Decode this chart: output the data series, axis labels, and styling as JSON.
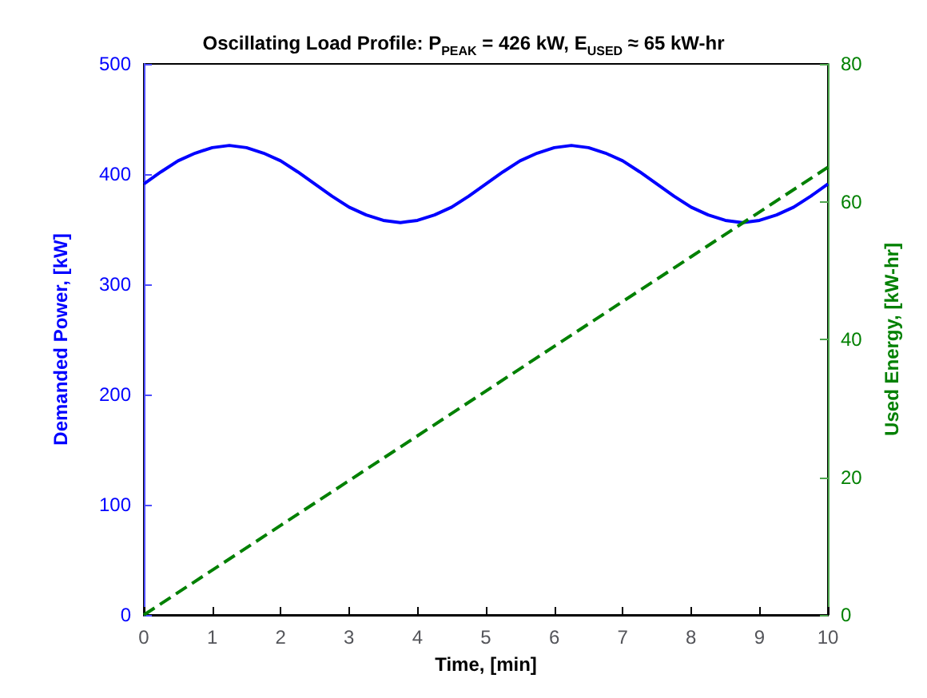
{
  "chart_data": {
    "type": "line",
    "title": "Oscillating Load Profile: P$_{PEAK}$ = 426 kW, E$_{USED}$ ≈ 65 kW-hr",
    "xlabel": "Time, [min]",
    "ylabel": "Demanded Power, [kW]",
    "y2label": "Used Energy, [kW-hr]",
    "xlim": [
      0,
      10
    ],
    "xticks": [
      0,
      1,
      2,
      3,
      4,
      5,
      6,
      7,
      8,
      9,
      10
    ],
    "ylim": [
      0,
      500
    ],
    "yticks": [
      0,
      100,
      200,
      300,
      400,
      500
    ],
    "y2lim": [
      0,
      80
    ],
    "y2ticks": [
      0,
      20,
      40,
      60,
      80
    ],
    "grid": false,
    "series": [
      {
        "color": "#0000ff",
        "line_style": "solid",
        "x": [
          0,
          0.25,
          0.5,
          0.75,
          1,
          1.25,
          1.5,
          1.75,
          2,
          2.25,
          2.5,
          2.75,
          3,
          3.25,
          3.5,
          3.75,
          4,
          4.25,
          4.5,
          4.75,
          5,
          5.25,
          5.5,
          5.75,
          6,
          6.25,
          6.5,
          6.75,
          7,
          7.25,
          7.5,
          7.75,
          8,
          8.25,
          8.5,
          8.75,
          9,
          9.25,
          9.5,
          9.75,
          10
        ],
        "values": [
          391,
          402,
          412,
          419,
          424,
          426,
          424,
          419,
          412,
          402,
          391,
          380,
          370,
          363,
          358,
          356,
          358,
          363,
          370,
          380,
          391,
          402,
          412,
          419,
          424,
          426,
          424,
          419,
          412,
          402,
          391,
          380,
          370,
          363,
          358,
          356,
          358,
          363,
          370,
          380,
          391
        ]
      },
      {
        "color": "#008000",
        "line_style": "dashed",
        "axis": "y2",
        "x": [
          0,
          2,
          4,
          6,
          8,
          10
        ],
        "values": [
          0,
          13,
          26,
          39,
          52,
          65
        ]
      }
    ]
  }
}
